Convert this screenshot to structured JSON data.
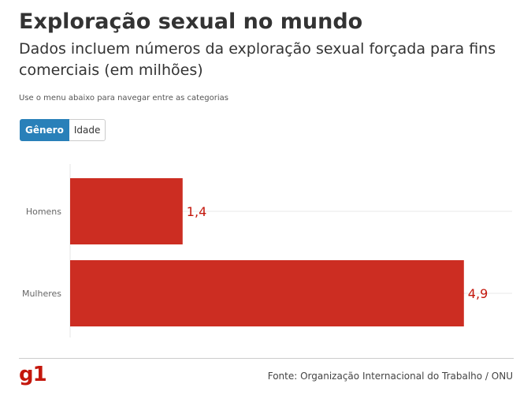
{
  "header": {
    "title": "Exploração sexual no mundo",
    "subtitle": "Dados incluem números da exploração sexual forçada para fins comerciais (em milhões)",
    "instruction": "Use o menu abaixo para navegar entre as categorias"
  },
  "tabs": [
    {
      "label": "Gênero",
      "active": true
    },
    {
      "label": "Idade",
      "active": false
    }
  ],
  "chart_data": {
    "type": "bar",
    "orientation": "horizontal",
    "categories": [
      "Homens",
      "Mulheres"
    ],
    "values": [
      1.4,
      4.9
    ],
    "value_labels": [
      "1,4",
      "4,9"
    ],
    "xlim": [
      0,
      5.5
    ],
    "grid": true,
    "bar_color": "#cc2d22",
    "label_color": "#c4170c"
  },
  "footer": {
    "logo": "g1",
    "source": "Fonte: Organização Internacional do Trabalho / ONU"
  }
}
